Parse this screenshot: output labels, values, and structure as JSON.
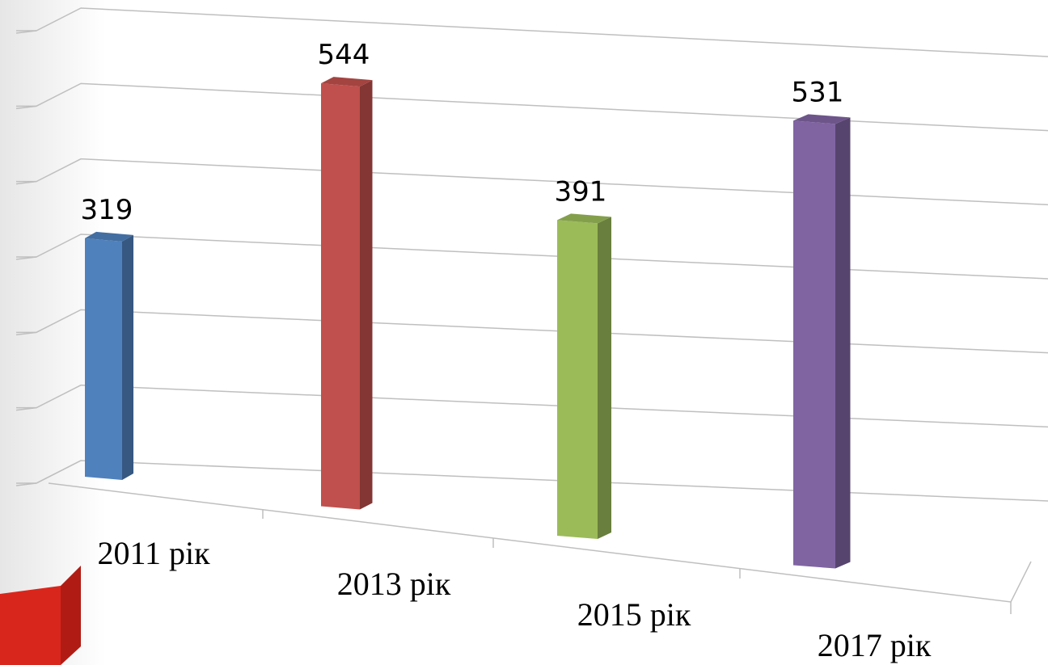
{
  "chart_data": {
    "type": "bar3d",
    "categories": [
      "2011 рік",
      "2013 рік",
      "2015 рік",
      "2017 рік"
    ],
    "values": [
      319,
      544,
      391,
      531
    ],
    "colors": [
      "#4f81bd",
      "#c0504d",
      "#9bbb59",
      "#8064a2"
    ],
    "ylim": [
      0,
      600
    ],
    "yticks": [
      0,
      100,
      200,
      300,
      400,
      500,
      600
    ],
    "grid": true
  }
}
